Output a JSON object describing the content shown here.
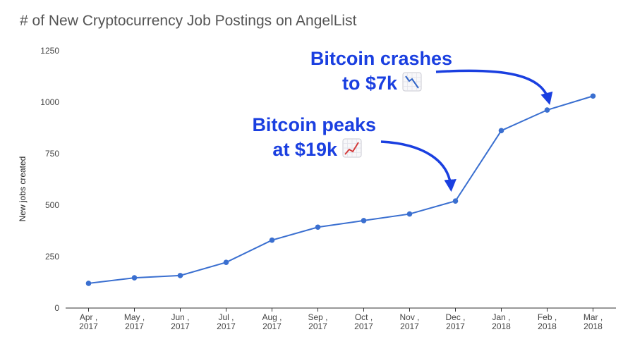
{
  "chart_data": {
    "type": "line",
    "title": "# of New Cryptocurrency Job Postings on AngelList",
    "xlabel": "",
    "ylabel": "New jobs created",
    "categories": [
      [
        "Apr ,",
        "2017"
      ],
      [
        "May ,",
        "2017"
      ],
      [
        "Jun ,",
        "2017"
      ],
      [
        "Jul ,",
        "2017"
      ],
      [
        "Aug ,",
        "2017"
      ],
      [
        "Sep ,",
        "2017"
      ],
      [
        "Oct ,",
        "2017"
      ],
      [
        "Nov ,",
        "2017"
      ],
      [
        "Dec ,",
        "2017"
      ],
      [
        "Jan ,",
        "2018"
      ],
      [
        "Feb ,",
        "2018"
      ],
      [
        "Mar ,",
        "2018"
      ]
    ],
    "values": [
      120,
      147,
      158,
      222,
      330,
      393,
      425,
      457,
      520,
      862,
      962,
      1030
    ],
    "ylim": [
      0,
      1250
    ],
    "yticks": [
      "0",
      "250",
      "500",
      "750",
      "1000",
      "1250"
    ],
    "grid": false,
    "legend": "none",
    "line_color": "#3a6fd0",
    "annotation_color": "#1a3fe0",
    "annotations": [
      {
        "lines": [
          "Bitcoin peaks",
          "at $19k"
        ],
        "icon": "chart-increasing-emoji",
        "target_index": 8
      },
      {
        "lines": [
          "Bitcoin crashes",
          "to $7k"
        ],
        "icon": "chart-decreasing-emoji",
        "target_index": 10
      }
    ]
  }
}
